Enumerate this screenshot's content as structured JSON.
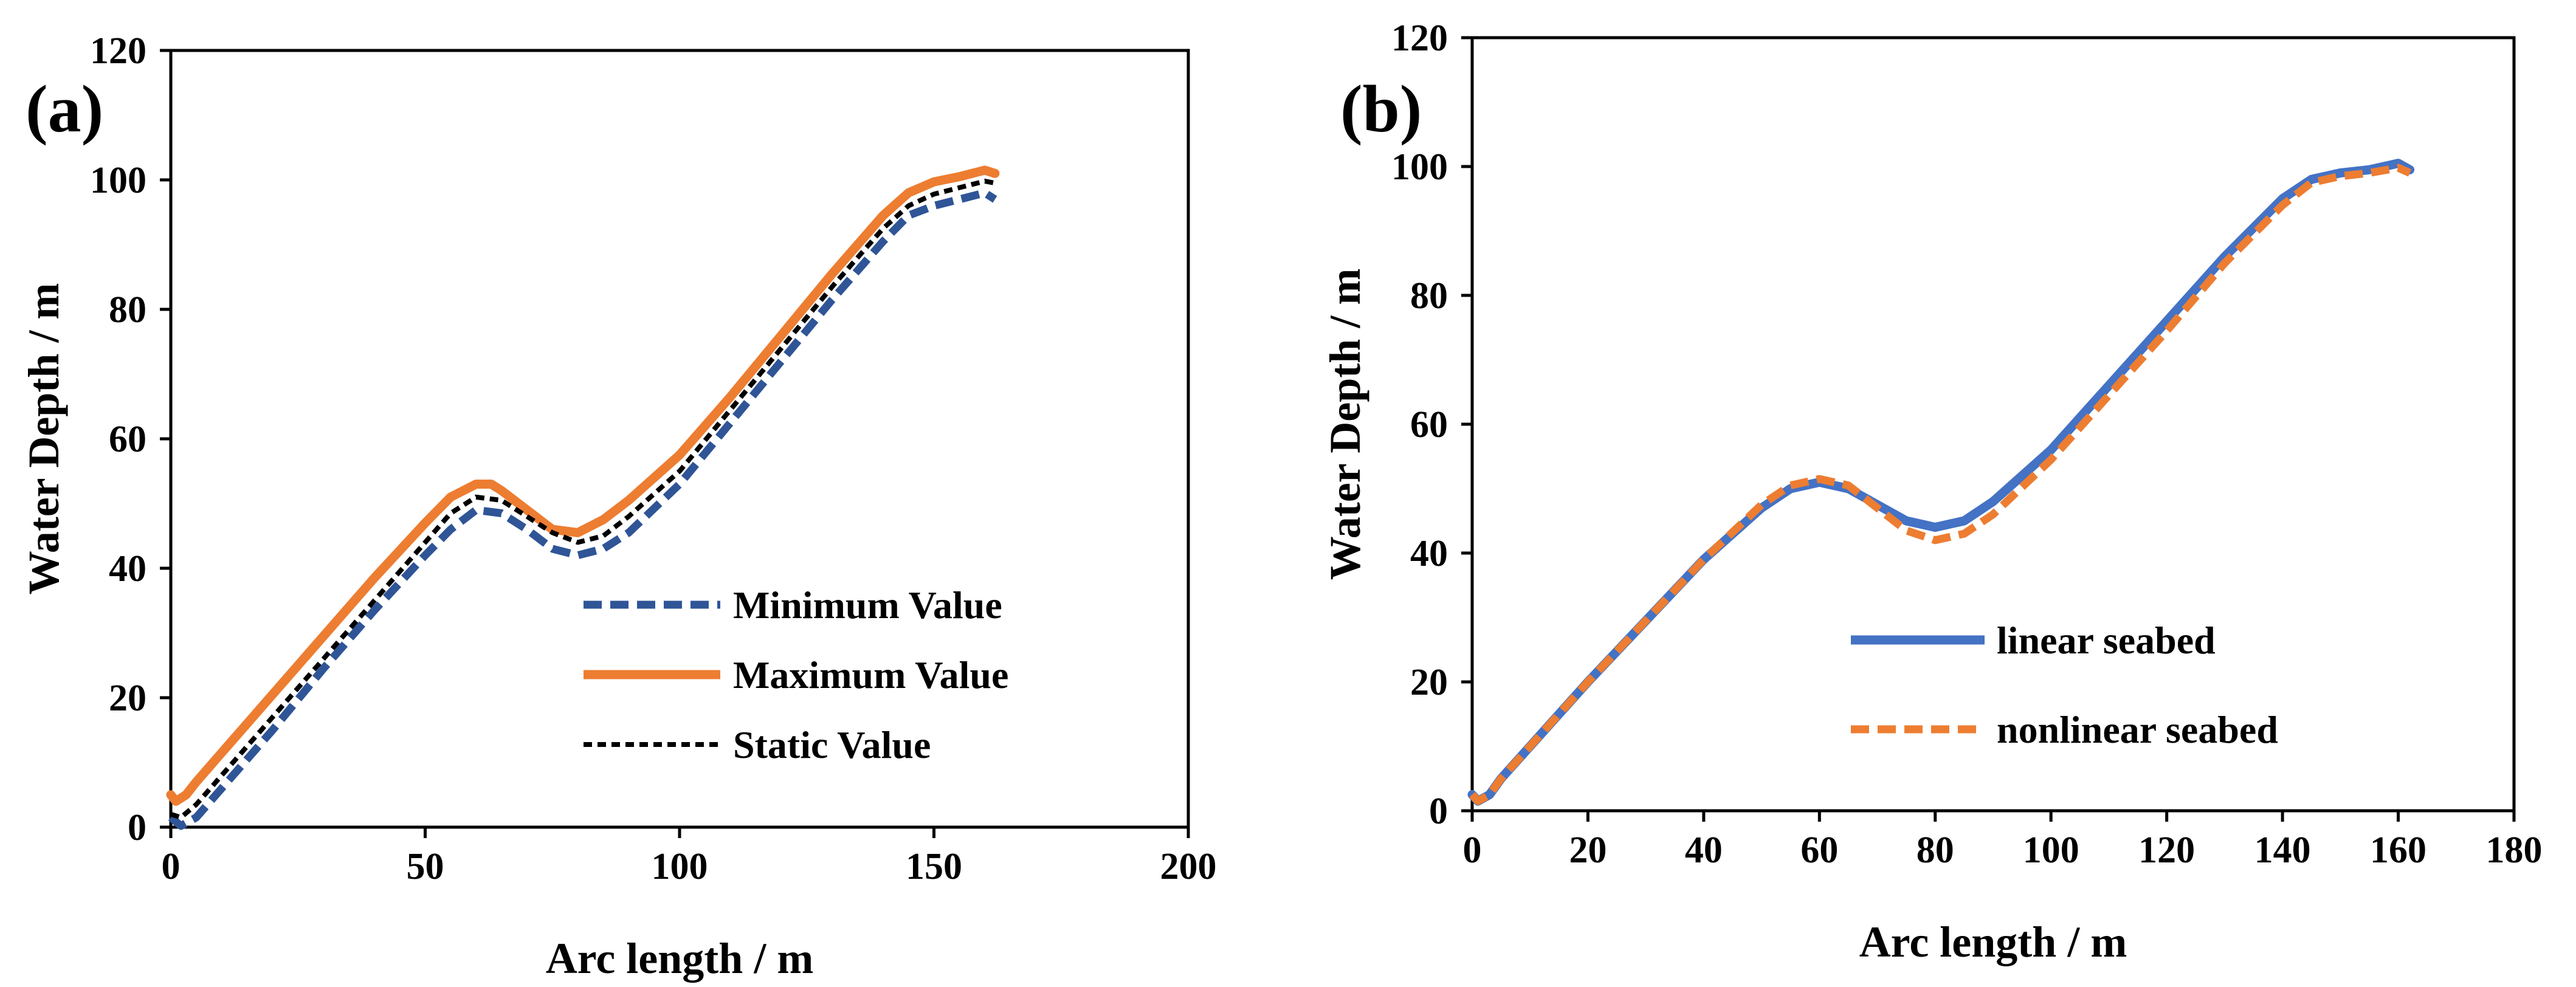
{
  "chart_data": [
    {
      "type": "line",
      "panel_label": "(a)",
      "xlabel": "Arc length / m",
      "ylabel": "Water Depth / m",
      "xlim": [
        0,
        200
      ],
      "ylim": [
        0,
        120
      ],
      "xticks": [
        0,
        50,
        100,
        150,
        200
      ],
      "yticks": [
        0,
        20,
        40,
        60,
        80,
        100,
        120
      ],
      "legend_position": "bottom-right",
      "series": [
        {
          "name": "Minimum Value",
          "color": "#2F5597",
          "style": "dashed",
          "x": [
            0,
            2,
            5,
            10,
            20,
            30,
            40,
            50,
            55,
            60,
            65,
            70,
            75,
            80,
            85,
            90,
            100,
            110,
            120,
            130,
            140,
            145,
            150,
            155,
            160,
            162
          ],
          "y": [
            1.5,
            0.2,
            1.5,
            6,
            15,
            24.5,
            33.5,
            42,
            46,
            49,
            48.5,
            46,
            43,
            42,
            43,
            45.5,
            53,
            62.5,
            72,
            81.5,
            90.5,
            94.5,
            96,
            97,
            98,
            97
          ]
        },
        {
          "name": "Maximum Value",
          "color": "#ED7D31",
          "style": "solid",
          "x": [
            0,
            1,
            3,
            5,
            10,
            20,
            30,
            40,
            50,
            55,
            60,
            63,
            65,
            70,
            75,
            80,
            85,
            90,
            100,
            110,
            120,
            130,
            140,
            145,
            150,
            155,
            160,
            162
          ],
          "y": [
            5,
            4,
            5,
            7,
            11.5,
            20.5,
            29.5,
            38.5,
            47,
            51,
            53,
            53,
            52,
            49,
            46,
            45.5,
            47.5,
            50.5,
            57.5,
            66.5,
            76,
            85.5,
            94.5,
            98,
            99.7,
            100.5,
            101.5,
            101
          ]
        },
        {
          "name": "Static Value",
          "color": "#000000",
          "style": "dashed",
          "x": [
            0,
            2,
            5,
            10,
            20,
            30,
            40,
            50,
            55,
            60,
            65,
            70,
            75,
            80,
            85,
            90,
            100,
            110,
            120,
            130,
            140,
            145,
            150,
            155,
            160,
            162
          ],
          "y": [
            2,
            1.5,
            3.5,
            8,
            17,
            26,
            35,
            44,
            48.5,
            51,
            50.5,
            48,
            45.5,
            44,
            45,
            48,
            55,
            64.5,
            74,
            83.5,
            92.5,
            96,
            97.8,
            98.8,
            99.8,
            99.5
          ]
        }
      ]
    },
    {
      "type": "line",
      "panel_label": "(b)",
      "xlabel": "Arc length / m",
      "ylabel": "Water Depth / m",
      "xlim": [
        0,
        180
      ],
      "ylim": [
        0,
        120
      ],
      "xticks": [
        0,
        20,
        40,
        60,
        80,
        100,
        120,
        140,
        160,
        180
      ],
      "yticks": [
        0,
        20,
        40,
        60,
        80,
        100,
        120
      ],
      "legend_position": "bottom-center",
      "series": [
        {
          "name": "linear seabed",
          "color": "#4472C4",
          "style": "solid",
          "x": [
            0,
            1,
            3,
            5,
            10,
            20,
            30,
            40,
            50,
            55,
            60,
            65,
            70,
            75,
            80,
            85,
            90,
            100,
            110,
            120,
            130,
            140,
            145,
            150,
            155,
            160,
            162
          ],
          "y": [
            2.5,
            1.5,
            2.5,
            5,
            10,
            20,
            29.5,
            39,
            47,
            50,
            51,
            50,
            47.5,
            45,
            44,
            45,
            48,
            56,
            66,
            76,
            86,
            95,
            98,
            99,
            99.5,
            100.5,
            99.5
          ]
        },
        {
          "name": "nonlinear seabed",
          "color": "#ED7D31",
          "style": "dashed",
          "x": [
            0,
            1,
            3,
            5,
            10,
            20,
            30,
            40,
            50,
            55,
            60,
            65,
            70,
            75,
            80,
            85,
            90,
            100,
            110,
            120,
            130,
            140,
            145,
            150,
            155,
            160,
            162
          ],
          "y": [
            2.5,
            1.5,
            2.5,
            5,
            10,
            20,
            29.5,
            39,
            47.5,
            50.5,
            51.5,
            50.5,
            47,
            43.5,
            42,
            43,
            46,
            54.5,
            64.5,
            74.5,
            85,
            94,
            97.5,
            98.5,
            99,
            99.8,
            99
          ]
        }
      ]
    }
  ]
}
